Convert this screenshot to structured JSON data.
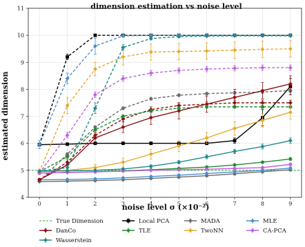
{
  "chart_data": {
    "type": "line",
    "title": "dimension estimation vs noise level",
    "xlabel": "noise level σ (×10⁻²)",
    "ylabel": "estimated dimension",
    "x": [
      0,
      1,
      2,
      3,
      4,
      5,
      6,
      7,
      8,
      9
    ],
    "xlim": [
      -0.4,
      9.4
    ],
    "ylim": [
      4,
      11
    ],
    "xticks": [
      0,
      1,
      2,
      3,
      4,
      5,
      6,
      7,
      8,
      9
    ],
    "yticks": [
      4,
      5,
      6,
      7,
      8,
      9,
      10,
      11
    ],
    "grid": true,
    "legend_position": "bottom",
    "reference_line": {
      "name": "True Dimension",
      "value": 5,
      "color": "#2e9e3a"
    },
    "series": [
      {
        "name": "Local PCA",
        "color": "#000000",
        "marker": "square",
        "clean": [
          5.95,
          5.97,
          6.0,
          6.0,
          6.0,
          6.0,
          6.0,
          6.1,
          6.95,
          8.1
        ],
        "clean_err": [
          0.05,
          0.05,
          0.05,
          0.05,
          0.05,
          0.05,
          0.05,
          0.1,
          0.3,
          0.3
        ],
        "noisy": [
          5.95,
          9.2,
          10.0,
          10.0,
          10.0,
          10.0,
          10.0,
          10.0,
          10.0,
          10.0
        ],
        "noisy_err": [
          0.05,
          0.1,
          0.03,
          0.02,
          0.02,
          0.02,
          0.02,
          0.02,
          0.02,
          0.02
        ]
      },
      {
        "name": "MADA",
        "color": "#6b6b6b",
        "marker": "diamond",
        "clean": [
          4.58,
          4.6,
          4.62,
          4.65,
          4.7,
          4.75,
          4.8,
          4.87,
          4.95,
          5.02
        ],
        "clean_err": [
          0.03,
          0.03,
          0.03,
          0.03,
          0.03,
          0.04,
          0.04,
          0.04,
          0.05,
          0.05
        ],
        "noisy": [
          4.6,
          5.6,
          6.6,
          7.3,
          7.65,
          7.78,
          7.84,
          7.87,
          7.9,
          7.95
        ],
        "noisy_err": [
          0.04,
          0.05,
          0.05,
          0.05,
          0.05,
          0.05,
          0.05,
          0.05,
          0.05,
          0.05
        ]
      },
      {
        "name": "MLE",
        "color": "#4a8fc9",
        "marker": "diamond",
        "clean": [
          4.65,
          4.66,
          4.68,
          4.72,
          4.77,
          4.82,
          4.88,
          4.94,
          5.0,
          5.08
        ],
        "clean_err": [
          0.03,
          0.03,
          0.03,
          0.03,
          0.03,
          0.03,
          0.04,
          0.04,
          0.04,
          0.04
        ],
        "noisy": [
          5.95,
          8.4,
          9.6,
          9.98,
          10.0,
          10.0,
          10.0,
          10.0,
          10.0,
          10.0
        ],
        "noisy_err": [
          0.15,
          0.2,
          0.3,
          0.05,
          0.03,
          0.03,
          0.03,
          0.03,
          0.03,
          0.03
        ]
      },
      {
        "name": "DanCo",
        "color": "#8b1111",
        "marker": "diamond",
        "clean": [
          4.65,
          5.2,
          6.2,
          6.6,
          6.95,
          7.2,
          7.45,
          7.7,
          7.95,
          8.2
        ],
        "clean_err": [
          0.05,
          0.1,
          0.2,
          0.2,
          0.25,
          0.3,
          0.3,
          0.3,
          0.3,
          0.3
        ],
        "noisy": [
          4.65,
          5.3,
          6.3,
          6.9,
          7.25,
          7.4,
          7.45,
          7.5,
          7.5,
          7.5
        ],
        "noisy_err": [
          0.05,
          0.1,
          0.1,
          0.1,
          0.1,
          0.1,
          0.1,
          0.1,
          0.1,
          0.1
        ]
      },
      {
        "name": "TLE",
        "color": "#1f8a2e",
        "marker": "diamond",
        "clean": [
          4.9,
          4.92,
          4.95,
          4.98,
          5.02,
          5.07,
          5.12,
          5.2,
          5.3,
          5.42
        ],
        "clean_err": [
          0.03,
          0.03,
          0.03,
          0.03,
          0.03,
          0.03,
          0.04,
          0.04,
          0.04,
          0.05
        ],
        "noisy": [
          4.95,
          5.5,
          6.5,
          7.0,
          7.2,
          7.3,
          7.35,
          7.35,
          7.35,
          7.35
        ],
        "noisy_err": [
          0.04,
          0.05,
          0.05,
          0.05,
          0.05,
          0.05,
          0.05,
          0.05,
          0.05,
          0.05
        ]
      },
      {
        "name": "TwoNN",
        "color": "#e6a82e",
        "marker": "diamond",
        "clean": [
          4.95,
          5.0,
          5.1,
          5.3,
          5.6,
          5.9,
          6.2,
          6.55,
          6.85,
          7.15
        ],
        "clean_err": [
          0.1,
          0.1,
          0.12,
          0.15,
          0.18,
          0.2,
          0.2,
          0.25,
          0.25,
          0.25
        ],
        "noisy": [
          4.95,
          7.4,
          8.75,
          9.2,
          9.38,
          9.4,
          9.42,
          9.45,
          9.48,
          9.5
        ],
        "noisy_err": [
          0.1,
          0.3,
          0.25,
          0.3,
          0.3,
          0.3,
          0.3,
          0.3,
          0.3,
          0.3
        ]
      },
      {
        "name": "CA-PCA",
        "color": "#c060dd",
        "marker": "diamond",
        "clean": [
          4.9,
          4.92,
          4.94,
          4.97,
          5.0,
          5.02,
          5.04,
          5.07,
          5.1,
          5.22
        ],
        "clean_err": [
          0.03,
          0.03,
          0.03,
          0.03,
          0.03,
          0.03,
          0.03,
          0.03,
          0.04,
          0.05
        ],
        "noisy": [
          4.9,
          6.3,
          7.8,
          8.4,
          8.6,
          8.7,
          8.75,
          8.78,
          8.8,
          8.8
        ],
        "noisy_err": [
          0.05,
          0.1,
          0.1,
          0.1,
          0.1,
          0.1,
          0.1,
          0.1,
          0.1,
          0.1
        ]
      },
      {
        "name": "Wasserstein",
        "color": "#1e8a8a",
        "marker": "diamond",
        "clean": [
          4.97,
          4.98,
          5.0,
          5.05,
          5.15,
          5.3,
          5.5,
          5.7,
          5.88,
          6.1
        ],
        "clean_err": [
          0.03,
          0.03,
          0.03,
          0.04,
          0.05,
          0.06,
          0.07,
          0.08,
          0.09,
          0.1
        ],
        "noisy": [
          4.97,
          5.1,
          7.3,
          9.55,
          9.88,
          9.95,
          9.97,
          9.98,
          9.98,
          9.98
        ],
        "noisy_err": [
          0.03,
          0.1,
          0.2,
          0.1,
          0.05,
          0.03,
          0.03,
          0.03,
          0.03,
          0.03
        ]
      }
    ]
  }
}
